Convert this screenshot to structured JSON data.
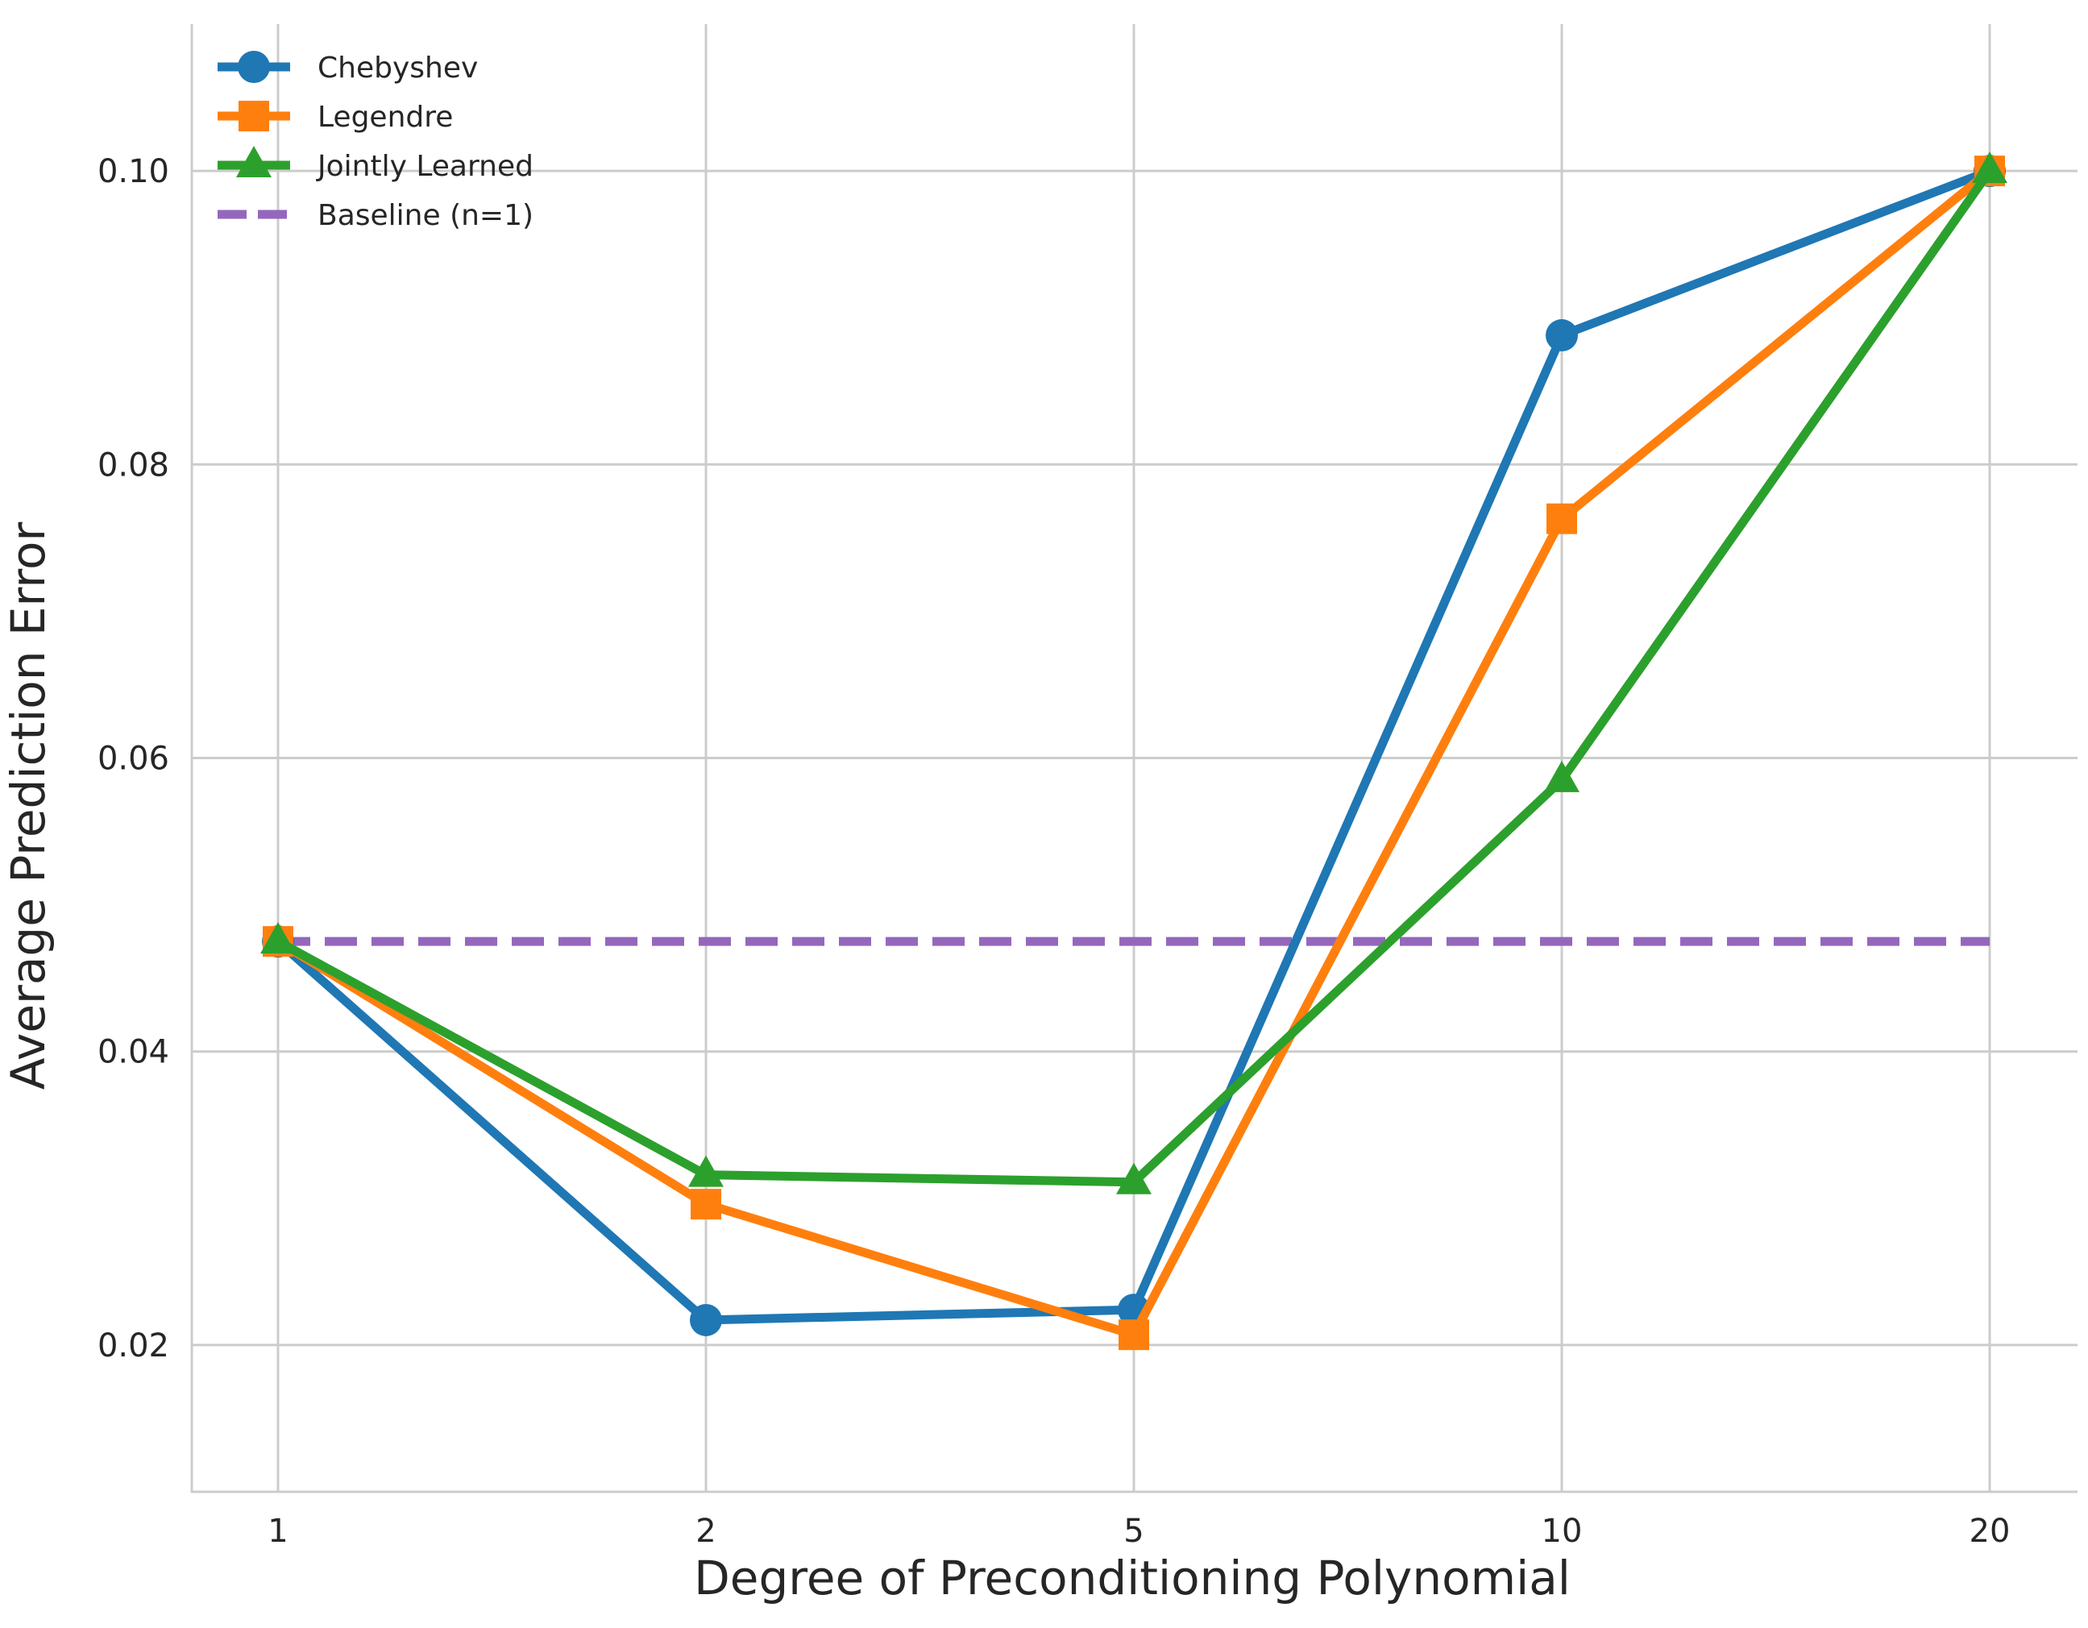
{
  "chart_data": {
    "type": "line",
    "title": "",
    "xlabel": "Degree of Preconditioning Polynomial",
    "ylabel": "Average Prediction Error",
    "categories": [
      "1",
      "2",
      "5",
      "10",
      "20"
    ],
    "ylim": [
      0.01,
      0.11
    ],
    "yticks": [
      "0.02",
      "0.04",
      "0.06",
      "0.08",
      "0.10"
    ],
    "ytick_values": [
      0.02,
      0.04,
      0.06,
      0.08,
      0.1
    ],
    "grid": true,
    "legend_position": "top-left",
    "series": [
      {
        "name": "Chebyshev",
        "color": "#1f77b4",
        "marker": "circle",
        "style": "solid",
        "values": [
          0.0475,
          0.0217,
          0.0224,
          0.0888,
          0.1
        ]
      },
      {
        "name": "Legendre",
        "color": "#ff7f0e",
        "marker": "square",
        "style": "solid",
        "values": [
          0.0475,
          0.0296,
          0.0207,
          0.0763,
          0.1
        ]
      },
      {
        "name": "Jointly Learned",
        "color": "#2ca02c",
        "marker": "triangle",
        "style": "solid",
        "values": [
          0.0475,
          0.0316,
          0.0311,
          0.0585,
          0.1
        ]
      },
      {
        "name": "Baseline (n=1)",
        "color": "#9467bd",
        "marker": "none",
        "style": "dashed",
        "values": [
          0.0475,
          0.0475,
          0.0475,
          0.0475,
          0.0475
        ]
      }
    ]
  }
}
